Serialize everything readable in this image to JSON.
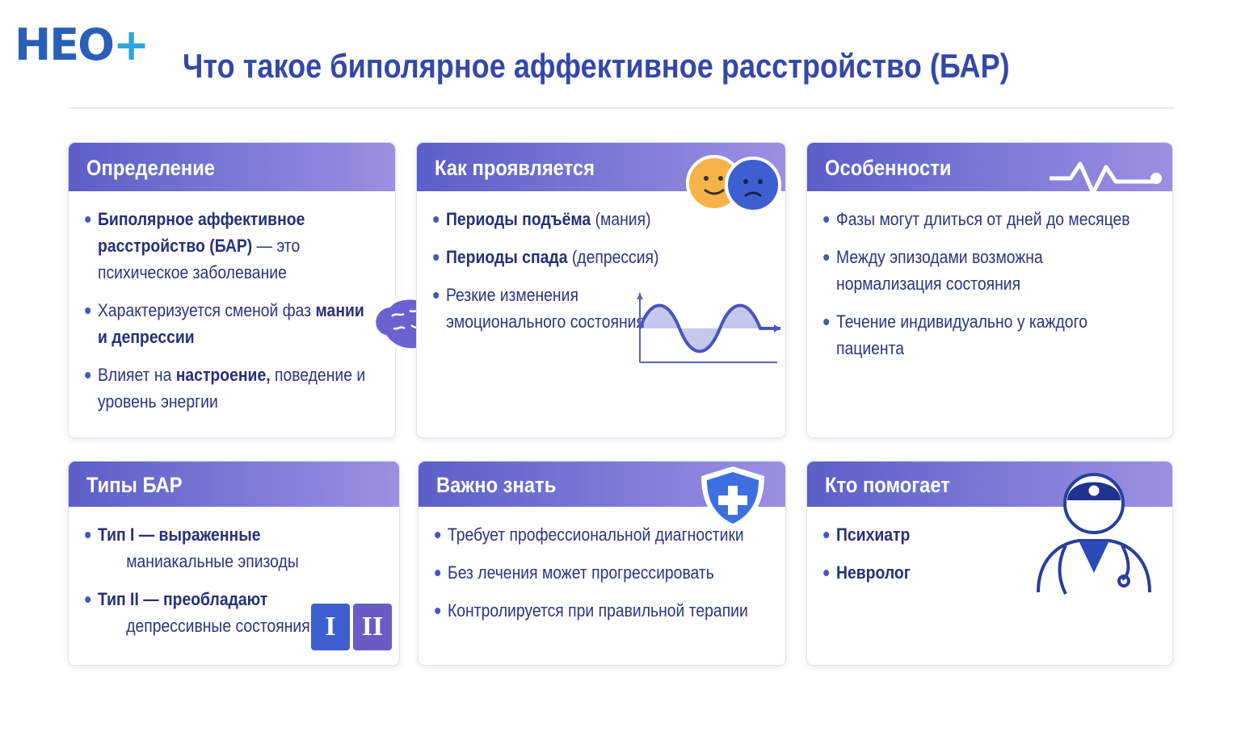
{
  "logo": {
    "text": "НЕО",
    "plus": "+"
  },
  "title": "Что такое биполярное аффективное расстройство (БАР)",
  "cards": [
    {
      "title": "Определение",
      "icon": "brain-icon",
      "bullets": [
        [
          {
            "t": "Биполярное аффективное расстройство (БАР)",
            "b": true
          },
          {
            "t": " — это психическое заболевание",
            "b": false
          }
        ],
        [
          {
            "t": "Характеризуется сменой фаз ",
            "b": false
          },
          {
            "t": "мании и депрессии",
            "b": true
          }
        ],
        [
          {
            "t": "Влияет на ",
            "b": false
          },
          {
            "t": "настроение,",
            "b": true
          },
          {
            "t": " поведение и уровень энергии",
            "b": false
          }
        ]
      ]
    },
    {
      "title": "Как проявляется",
      "icon": "happy-sad-faces-icon",
      "bullets": [
        [
          {
            "t": "Периоды подъёма",
            "b": true
          },
          {
            "t": " (мания)",
            "b": false
          }
        ],
        [
          {
            "t": "Периоды спада",
            "b": true
          },
          {
            "t": " (депрессия)",
            "b": false
          }
        ],
        [
          {
            "t": "Резкие изменения эмоционального состояния",
            "b": false
          }
        ]
      ]
    },
    {
      "title": "Особенности",
      "icon": "pulse-line-icon",
      "bullets": [
        [
          {
            "t": "Фазы могут длиться от дней до месяцев",
            "b": false
          }
        ],
        [
          {
            "t": "Между эпизодами возможна нормализация состояния",
            "b": false
          }
        ],
        [
          {
            "t": "Течение индивидуально у каждого пациента",
            "b": false
          }
        ]
      ]
    },
    {
      "title": "Типы БАР",
      "icon": "type-badges-icon",
      "badges": [
        "I",
        "II"
      ],
      "bullets": [
        [
          {
            "t": "Тип I — выраженные",
            "b": true
          },
          {
            "t": " маниакальные эпизоды",
            "b": false
          }
        ],
        [
          {
            "t": "Тип II — преобладают",
            "b": true
          },
          {
            "t": " депрессивные состояния",
            "b": false
          }
        ]
      ]
    },
    {
      "title": "Важно знать",
      "icon": "shield-plus-icon",
      "bullets": [
        [
          {
            "t": "Требует профессиональной диагностики",
            "b": false
          }
        ],
        [
          {
            "t": "Без лечения может прогрессировать",
            "b": false
          }
        ],
        [
          {
            "t": "Контролируется при правильной терапии",
            "b": false
          }
        ]
      ]
    },
    {
      "title": "Кто помогает",
      "icon": "doctor-icon",
      "bullets": [
        [
          {
            "t": "Психиатр",
            "b": true
          }
        ],
        [
          {
            "t": "Невролог",
            "b": true
          }
        ]
      ]
    }
  ],
  "colors": {
    "header_start": "#5b5fc8",
    "header_end": "#9b90e2",
    "text": "#2b3580",
    "title": "#3548a8"
  }
}
